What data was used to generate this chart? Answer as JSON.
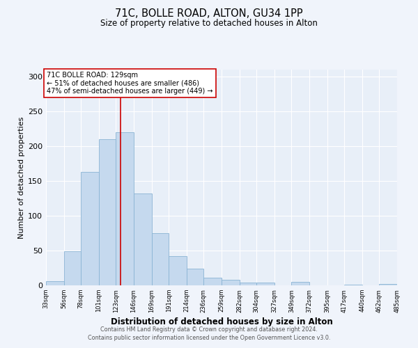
{
  "title": "71C, BOLLE ROAD, ALTON, GU34 1PP",
  "subtitle": "Size of property relative to detached houses in Alton",
  "xlabel": "Distribution of detached houses by size in Alton",
  "ylabel": "Number of detached properties",
  "bar_color": "#c5d9ee",
  "bar_edge_color": "#8ab4d4",
  "background_color": "#e8eff8",
  "grid_color": "#ffffff",
  "vline_x": 129,
  "vline_color": "#cc0000",
  "annotation_title": "71C BOLLE ROAD: 129sqm",
  "annotation_line1": "← 51% of detached houses are smaller (486)",
  "annotation_line2": "47% of semi-detached houses are larger (449) →",
  "annotation_box_color": "#ffffff",
  "annotation_box_edge_color": "#cc0000",
  "bin_edges": [
    33,
    56,
    78,
    101,
    123,
    146,
    169,
    191,
    214,
    236,
    259,
    282,
    304,
    327,
    349,
    372,
    395,
    417,
    440,
    462,
    485
  ],
  "bin_heights": [
    6,
    49,
    163,
    210,
    220,
    132,
    75,
    42,
    24,
    11,
    8,
    4,
    4,
    0,
    5,
    0,
    0,
    1,
    0,
    2
  ],
  "ylim": [
    0,
    310
  ],
  "yticks": [
    0,
    50,
    100,
    150,
    200,
    250,
    300
  ],
  "footer_line1": "Contains HM Land Registry data © Crown copyright and database right 2024.",
  "footer_line2": "Contains public sector information licensed under the Open Government Licence v3.0."
}
